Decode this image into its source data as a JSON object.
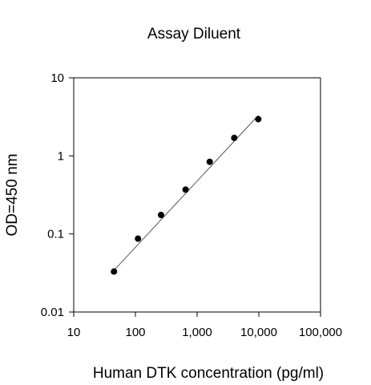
{
  "chart_data": {
    "type": "scatter",
    "title": "Assay Diluent",
    "xlabel": "Human DTK concentration (pg/ml)",
    "ylabel": "OD=450 nm",
    "x_scale": "log",
    "y_scale": "log",
    "xlim": [
      10,
      100000
    ],
    "ylim": [
      0.01,
      10
    ],
    "x_ticks": [
      10,
      100,
      1000,
      10000,
      100000
    ],
    "x_tick_labels": [
      "10",
      "100",
      "1,000",
      "10,000",
      "100,000"
    ],
    "y_ticks": [
      0.01,
      0.1,
      1,
      10
    ],
    "y_tick_labels": [
      "0.01",
      "0.1",
      "1",
      "10"
    ],
    "grid": false,
    "series": [
      {
        "x": [
          45,
          110,
          260,
          650,
          1600,
          4000,
          9800
        ],
        "y": [
          0.033,
          0.087,
          0.175,
          0.37,
          0.84,
          1.7,
          2.95
        ]
      }
    ],
    "fit_line": {
      "x": [
        40,
        9800
      ],
      "y": [
        0.031,
        3.3
      ]
    },
    "colors": {
      "point": "#000000",
      "line": "#555555",
      "axis": "#000000"
    }
  }
}
